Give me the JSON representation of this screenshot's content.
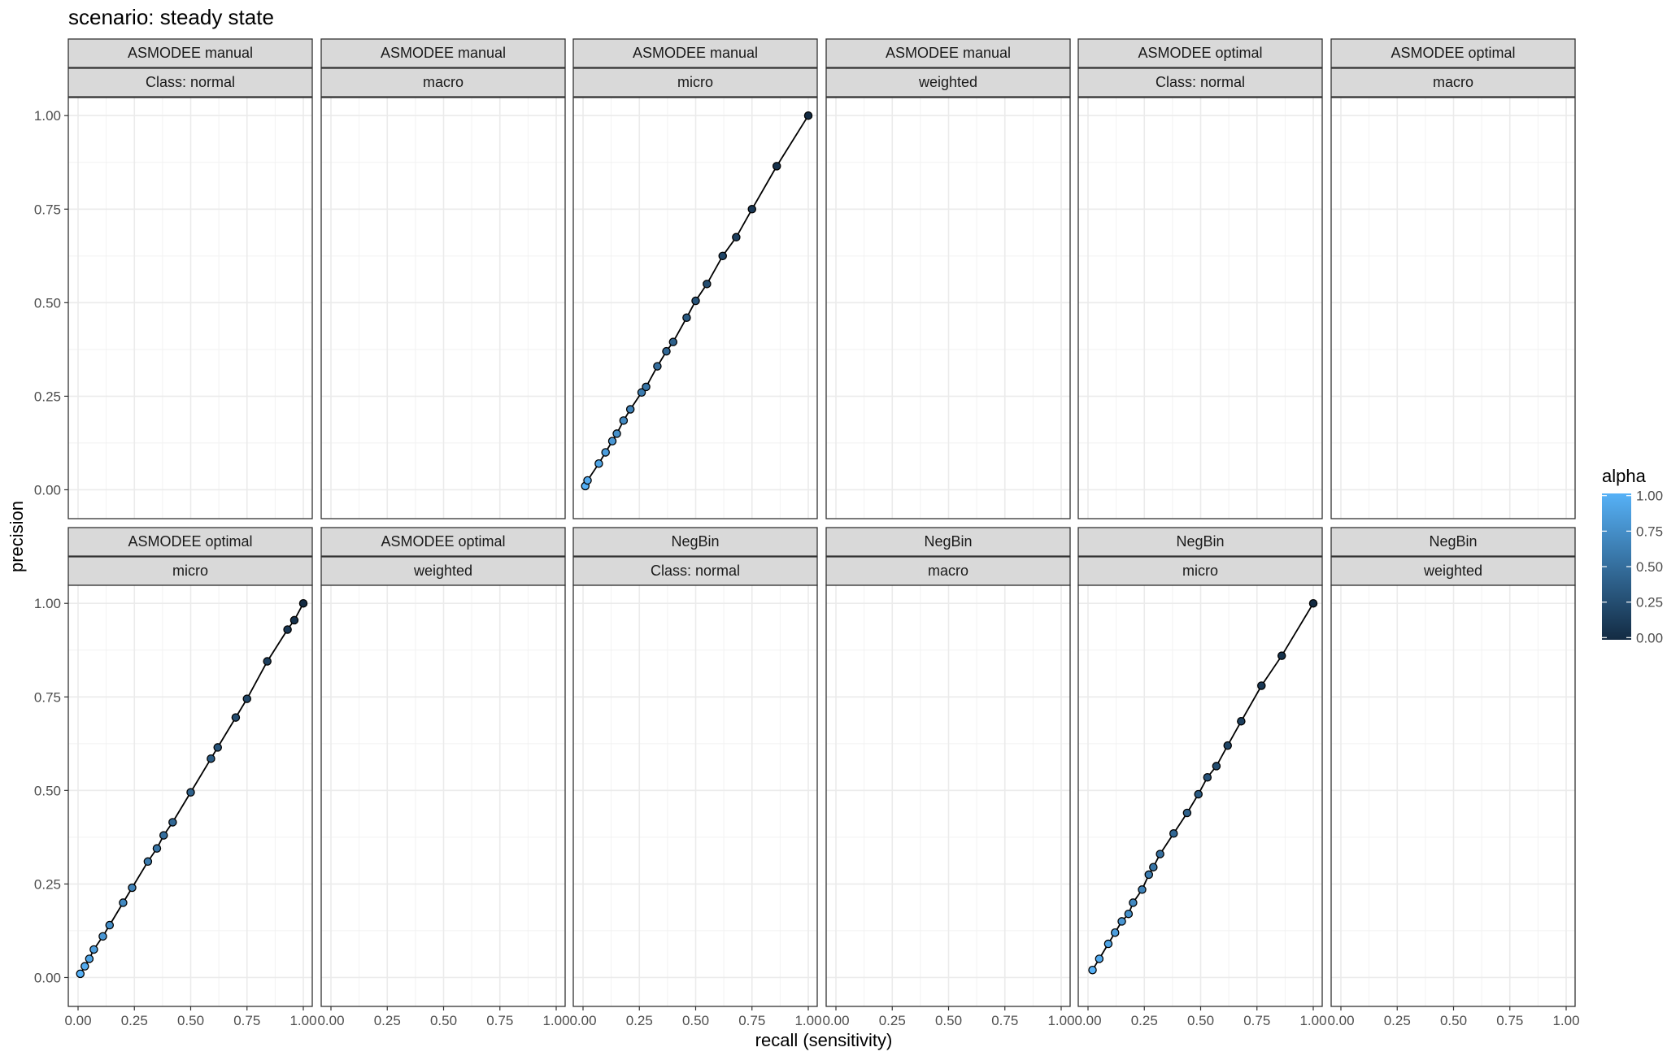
{
  "chart_data": {
    "type": "scatter",
    "title": "scenario:  steady state",
    "xlabel": "recall (sensitivity)",
    "ylabel": "precision",
    "xlim": [
      0,
      1
    ],
    "ylim": [
      0,
      1
    ],
    "x_ticks": [
      "0.00",
      "0.25",
      "0.50",
      "0.75",
      "1.00"
    ],
    "y_ticks": [
      "0.00",
      "0.25",
      "0.50",
      "0.75",
      "1.00"
    ],
    "grid": true,
    "facet_rows": 2,
    "facet_cols": 6,
    "legend": {
      "title": "alpha",
      "position": "right",
      "ticks": [
        "0.00",
        "0.25",
        "0.50",
        "0.75",
        "1.00"
      ],
      "color_low": "#132b43",
      "color_high": "#56b1f7"
    },
    "panels": [
      {
        "method": "ASMODEE manual",
        "metric": "Class: normal",
        "points": []
      },
      {
        "method": "ASMODEE manual",
        "metric": "macro",
        "points": []
      },
      {
        "method": "ASMODEE manual",
        "metric": "micro",
        "points": [
          {
            "x": 0.01,
            "y": 0.01,
            "alpha": 1.0
          },
          {
            "x": 0.02,
            "y": 0.025,
            "alpha": 0.95
          },
          {
            "x": 0.07,
            "y": 0.07,
            "alpha": 0.9
          },
          {
            "x": 0.1,
            "y": 0.1,
            "alpha": 0.85
          },
          {
            "x": 0.13,
            "y": 0.13,
            "alpha": 0.8
          },
          {
            "x": 0.15,
            "y": 0.15,
            "alpha": 0.75
          },
          {
            "x": 0.18,
            "y": 0.185,
            "alpha": 0.7
          },
          {
            "x": 0.21,
            "y": 0.215,
            "alpha": 0.65
          },
          {
            "x": 0.26,
            "y": 0.26,
            "alpha": 0.6
          },
          {
            "x": 0.28,
            "y": 0.275,
            "alpha": 0.55
          },
          {
            "x": 0.33,
            "y": 0.33,
            "alpha": 0.5
          },
          {
            "x": 0.37,
            "y": 0.37,
            "alpha": 0.45
          },
          {
            "x": 0.4,
            "y": 0.395,
            "alpha": 0.4
          },
          {
            "x": 0.46,
            "y": 0.46,
            "alpha": 0.35
          },
          {
            "x": 0.5,
            "y": 0.505,
            "alpha": 0.3
          },
          {
            "x": 0.55,
            "y": 0.55,
            "alpha": 0.25
          },
          {
            "x": 0.62,
            "y": 0.625,
            "alpha": 0.2
          },
          {
            "x": 0.68,
            "y": 0.675,
            "alpha": 0.15
          },
          {
            "x": 0.75,
            "y": 0.75,
            "alpha": 0.1
          },
          {
            "x": 0.86,
            "y": 0.865,
            "alpha": 0.05
          },
          {
            "x": 1.0,
            "y": 1.0,
            "alpha": 0.0
          }
        ]
      },
      {
        "method": "ASMODEE manual",
        "metric": "weighted",
        "points": []
      },
      {
        "method": "ASMODEE optimal",
        "metric": "Class: normal",
        "points": []
      },
      {
        "method": "ASMODEE optimal",
        "metric": "macro",
        "points": []
      },
      {
        "method": "ASMODEE optimal",
        "metric": "micro",
        "points": [
          {
            "x": 0.01,
            "y": 0.01,
            "alpha": 1.0
          },
          {
            "x": 0.03,
            "y": 0.03,
            "alpha": 0.95
          },
          {
            "x": 0.05,
            "y": 0.05,
            "alpha": 0.9
          },
          {
            "x": 0.07,
            "y": 0.075,
            "alpha": 0.85
          },
          {
            "x": 0.11,
            "y": 0.11,
            "alpha": 0.8
          },
          {
            "x": 0.14,
            "y": 0.14,
            "alpha": 0.75
          },
          {
            "x": 0.2,
            "y": 0.2,
            "alpha": 0.7
          },
          {
            "x": 0.24,
            "y": 0.24,
            "alpha": 0.65
          },
          {
            "x": 0.31,
            "y": 0.31,
            "alpha": 0.6
          },
          {
            "x": 0.35,
            "y": 0.345,
            "alpha": 0.55
          },
          {
            "x": 0.38,
            "y": 0.38,
            "alpha": 0.5
          },
          {
            "x": 0.42,
            "y": 0.415,
            "alpha": 0.45
          },
          {
            "x": 0.5,
            "y": 0.495,
            "alpha": 0.4
          },
          {
            "x": 0.59,
            "y": 0.585,
            "alpha": 0.35
          },
          {
            "x": 0.62,
            "y": 0.615,
            "alpha": 0.3
          },
          {
            "x": 0.7,
            "y": 0.695,
            "alpha": 0.25
          },
          {
            "x": 0.75,
            "y": 0.745,
            "alpha": 0.2
          },
          {
            "x": 0.84,
            "y": 0.845,
            "alpha": 0.15
          },
          {
            "x": 0.93,
            "y": 0.93,
            "alpha": 0.1
          },
          {
            "x": 0.96,
            "y": 0.955,
            "alpha": 0.05
          },
          {
            "x": 1.0,
            "y": 1.0,
            "alpha": 0.0
          }
        ]
      },
      {
        "method": "ASMODEE optimal",
        "metric": "weighted",
        "points": []
      },
      {
        "method": "NegBin",
        "metric": "Class: normal",
        "points": []
      },
      {
        "method": "NegBin",
        "metric": "macro",
        "points": []
      },
      {
        "method": "NegBin",
        "metric": "micro",
        "points": [
          {
            "x": 0.02,
            "y": 0.02,
            "alpha": 1.0
          },
          {
            "x": 0.05,
            "y": 0.05,
            "alpha": 0.95
          },
          {
            "x": 0.09,
            "y": 0.09,
            "alpha": 0.9
          },
          {
            "x": 0.12,
            "y": 0.12,
            "alpha": 0.85
          },
          {
            "x": 0.15,
            "y": 0.15,
            "alpha": 0.8
          },
          {
            "x": 0.18,
            "y": 0.17,
            "alpha": 0.75
          },
          {
            "x": 0.2,
            "y": 0.2,
            "alpha": 0.7
          },
          {
            "x": 0.24,
            "y": 0.235,
            "alpha": 0.65
          },
          {
            "x": 0.27,
            "y": 0.275,
            "alpha": 0.6
          },
          {
            "x": 0.29,
            "y": 0.295,
            "alpha": 0.55
          },
          {
            "x": 0.32,
            "y": 0.33,
            "alpha": 0.5
          },
          {
            "x": 0.38,
            "y": 0.385,
            "alpha": 0.45
          },
          {
            "x": 0.44,
            "y": 0.44,
            "alpha": 0.4
          },
          {
            "x": 0.49,
            "y": 0.49,
            "alpha": 0.35
          },
          {
            "x": 0.53,
            "y": 0.535,
            "alpha": 0.3
          },
          {
            "x": 0.57,
            "y": 0.565,
            "alpha": 0.25
          },
          {
            "x": 0.62,
            "y": 0.62,
            "alpha": 0.2
          },
          {
            "x": 0.68,
            "y": 0.685,
            "alpha": 0.15
          },
          {
            "x": 0.77,
            "y": 0.78,
            "alpha": 0.1
          },
          {
            "x": 0.86,
            "y": 0.86,
            "alpha": 0.05
          },
          {
            "x": 1.0,
            "y": 1.0,
            "alpha": 0.0
          }
        ]
      },
      {
        "method": "NegBin",
        "metric": "weighted",
        "points": []
      }
    ]
  }
}
